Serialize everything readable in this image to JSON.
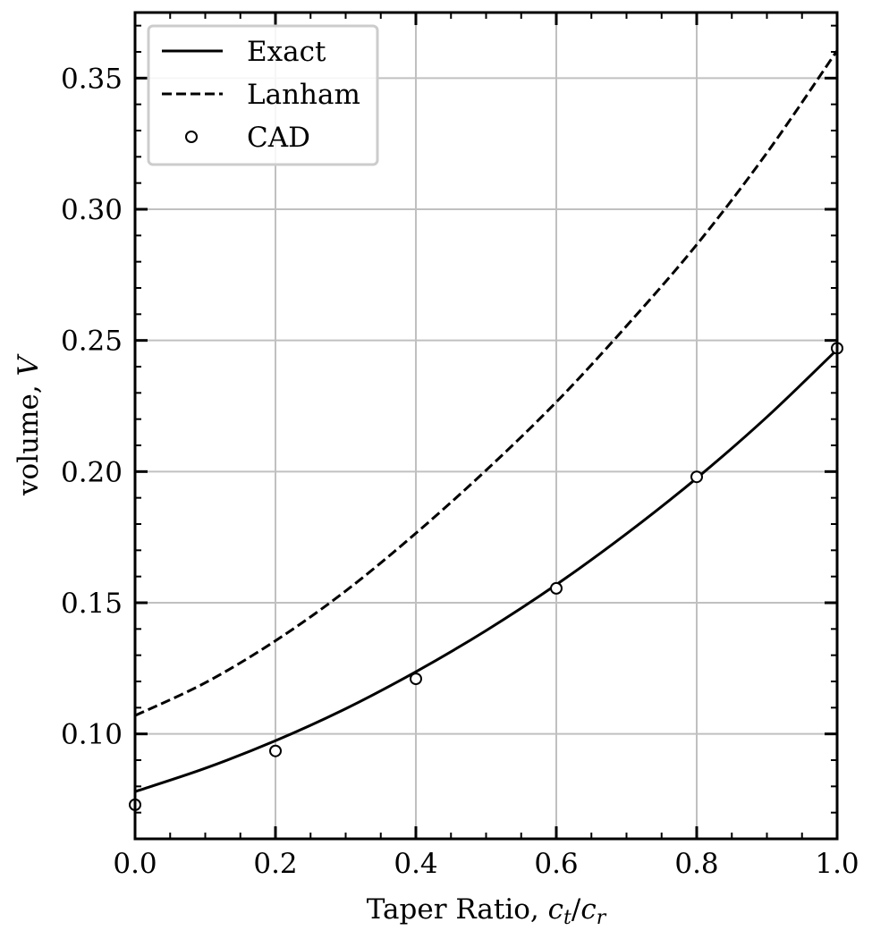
{
  "chart_data": {
    "type": "line",
    "xlabel": "Taper Ratio, ",
    "xlabel_math": {
      "c1": "c",
      "s1": "t",
      "sep": "/",
      "c2": "c",
      "s2": "r"
    },
    "ylabel": "volume, ",
    "ylabel_math": "V",
    "xlim": [
      0.0,
      1.0
    ],
    "ylim": [
      0.06,
      0.375
    ],
    "xticks": [
      "0.0",
      "0.2",
      "0.4",
      "0.6",
      "0.8",
      "1.0"
    ],
    "yticks": [
      "0.10",
      "0.15",
      "0.20",
      "0.25",
      "0.30",
      "0.35"
    ],
    "grid": true,
    "legend_position": "top-left",
    "series": [
      {
        "name": "Exact",
        "style": "solid",
        "x": [
          0.0,
          0.1,
          0.2,
          0.3,
          0.4,
          0.5,
          0.6,
          0.7,
          0.8,
          0.9,
          1.0
        ],
        "y": [
          0.078,
          0.0869,
          0.0974,
          0.1096,
          0.1237,
          0.1394,
          0.1569,
          0.1763,
          0.1975,
          0.2208,
          0.2465
        ]
      },
      {
        "name": "Lanham",
        "style": "dashed",
        "x": [
          0.0,
          0.1,
          0.2,
          0.3,
          0.4,
          0.5,
          0.6,
          0.7,
          0.8,
          0.9,
          1.0
        ],
        "y": [
          0.107,
          0.1195,
          0.1355,
          0.1545,
          0.1765,
          0.2005,
          0.2265,
          0.2555,
          0.2865,
          0.3215,
          0.3605
        ]
      },
      {
        "name": "CAD",
        "style": "markers",
        "x": [
          0.0,
          0.2,
          0.4,
          0.6,
          0.8,
          1.0
        ],
        "y": [
          0.073,
          0.0935,
          0.121,
          0.1555,
          0.198,
          0.247
        ]
      }
    ]
  }
}
